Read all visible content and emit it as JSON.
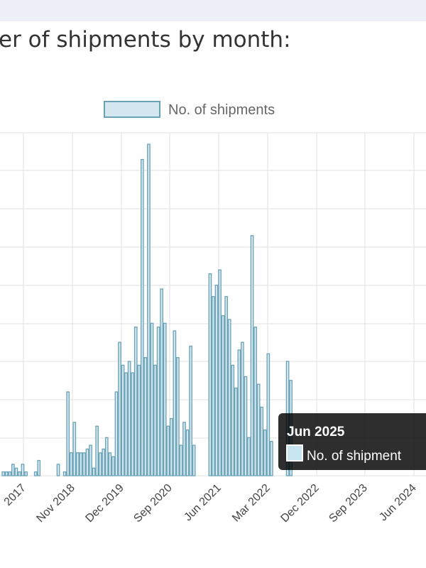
{
  "page": {
    "heading": "er of shipments by month:"
  },
  "chart_data": {
    "type": "bar",
    "legend": {
      "label": "No. of shipments",
      "position": "top"
    },
    "bar_color": "#d4e6ef",
    "bar_border": "#6aa3b5",
    "grid": true,
    "x_tick_labels": [
      "2017",
      "Nov 2018",
      "Dec 2019",
      "Sep 2020",
      "Jun 2021",
      "Mar 2022",
      "Dec 2022",
      "Sep 2023",
      "Jun 2024"
    ],
    "tooltip": {
      "title": "Jun 2025",
      "label": "No. of shipment"
    },
    "series": [
      {
        "name": "No. of shipments",
        "values": [
          1,
          1,
          1,
          3,
          2,
          1,
          3,
          1,
          0,
          0,
          1,
          4,
          0,
          0,
          0,
          0,
          0,
          3,
          0,
          1,
          22,
          6,
          14,
          6,
          6,
          6,
          7,
          8,
          2,
          13,
          6,
          7,
          10,
          6,
          5,
          22,
          35,
          29,
          27,
          30,
          27,
          39,
          29,
          83,
          31,
          87,
          40,
          29,
          39,
          49,
          40,
          13,
          15,
          38,
          31,
          8,
          14,
          12,
          34,
          8,
          0,
          0,
          0,
          0,
          53,
          47,
          50,
          54,
          42,
          47,
          41,
          29,
          23,
          33,
          35,
          26,
          10,
          63,
          39,
          24,
          18,
          12,
          32,
          9,
          0,
          0,
          0,
          0,
          30,
          25
        ]
      }
    ]
  }
}
